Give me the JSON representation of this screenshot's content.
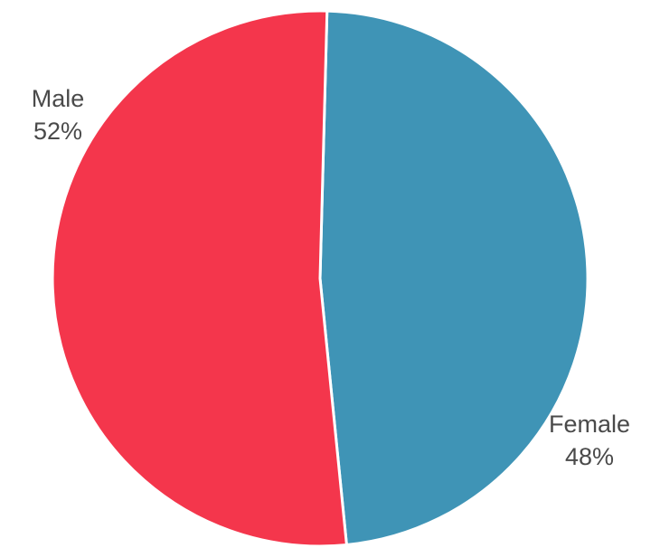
{
  "chart_data": {
    "type": "pie",
    "slices": [
      {
        "label": "Female",
        "value": 48,
        "value_label": "48%",
        "color": "#3f94b6"
      },
      {
        "label": "Male",
        "value": 52,
        "value_label": "52%",
        "color": "#f4364c"
      }
    ],
    "title": "",
    "legend": "none",
    "slice_border_color": "#ffffff"
  }
}
